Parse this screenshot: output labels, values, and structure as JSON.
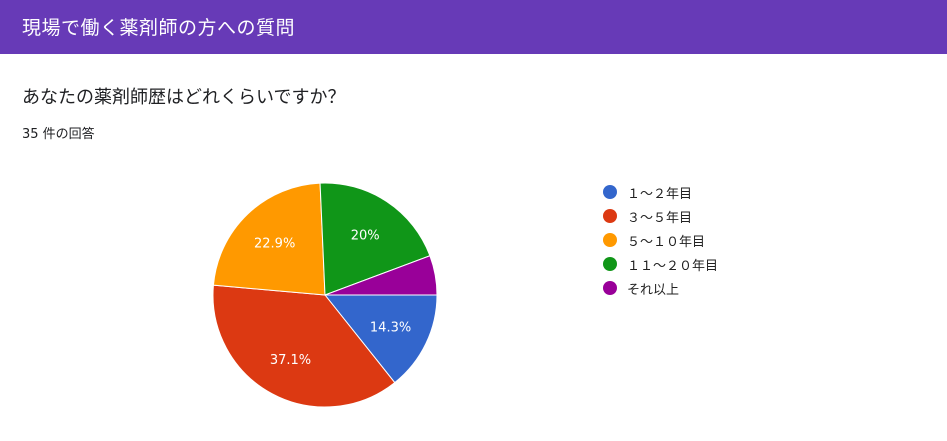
{
  "header": {
    "title": "現場で働く薬剤師の方への質問"
  },
  "question": {
    "title": "あなたの薬剤師歴はどれくらいですか？",
    "response_count": "35 件の回答"
  },
  "colors": {
    "header_bg": "#673ab7",
    "slice_1": "#3366cc",
    "slice_2": "#dc3912",
    "slice_3": "#ff9900",
    "slice_4": "#109618",
    "slice_5": "#990099"
  },
  "chart_data": {
    "type": "pie",
    "categories": [
      "１～２年目",
      "３～５年目",
      "５～１０年目",
      "１１～２０年目",
      "それ以上"
    ],
    "values": [
      14.3,
      37.1,
      22.9,
      20.0,
      5.7
    ],
    "data_labels": [
      "14.3%",
      "37.1%",
      "22.9%",
      "20%",
      ""
    ],
    "colors": [
      "#3366cc",
      "#dc3912",
      "#ff9900",
      "#109618",
      "#990099"
    ],
    "legend_position": "right"
  }
}
